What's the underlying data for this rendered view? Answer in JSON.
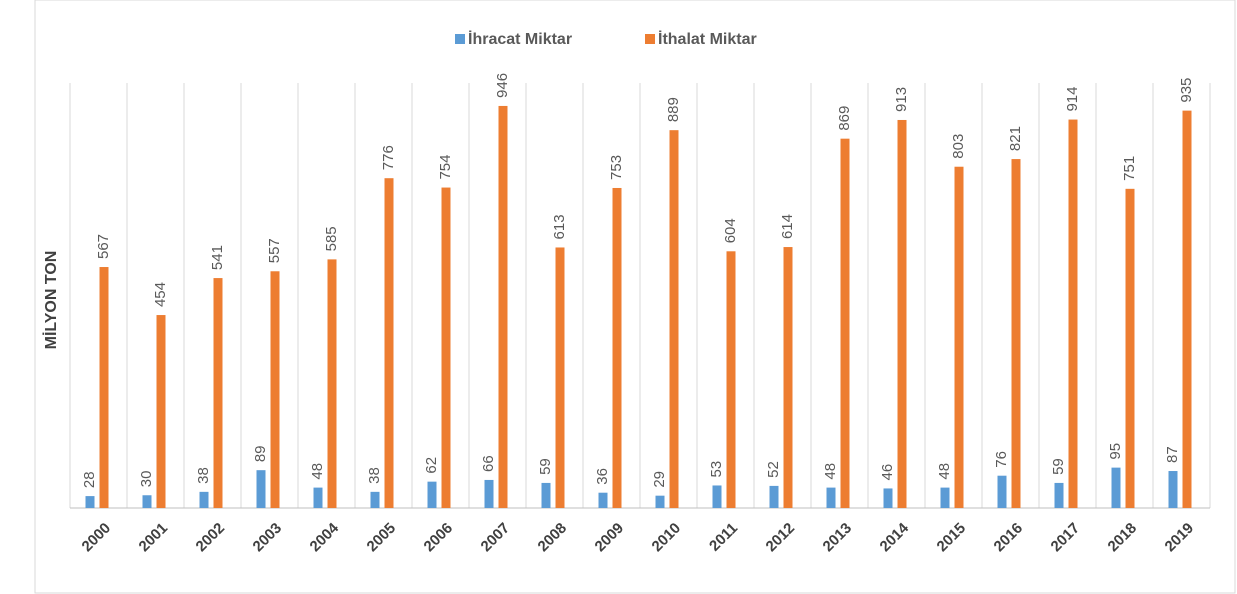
{
  "chart_data": {
    "type": "bar",
    "y_label": "MİLYON TON",
    "categories": [
      "2000",
      "2001",
      "2002",
      "2003",
      "2004",
      "2005",
      "2006",
      "2007",
      "2008",
      "2009",
      "2010",
      "2011",
      "2012",
      "2013",
      "2014",
      "2015",
      "2016",
      "2017",
      "2018",
      "2019"
    ],
    "series": [
      {
        "name": "İhracat Miktar",
        "color": "#5b9bd5",
        "values": [
          28,
          30,
          38,
          89,
          48,
          38,
          62,
          66,
          59,
          36,
          29,
          53,
          52,
          48,
          46,
          48,
          76,
          59,
          95,
          87
        ]
      },
      {
        "name": "İthalat Miktar",
        "color": "#ed7d31",
        "values": [
          567,
          454,
          541,
          557,
          585,
          776,
          754,
          946,
          613,
          753,
          889,
          604,
          614,
          869,
          913,
          803,
          821,
          914,
          751,
          935
        ]
      }
    ],
    "ylim": [
      0,
      1000
    ]
  }
}
